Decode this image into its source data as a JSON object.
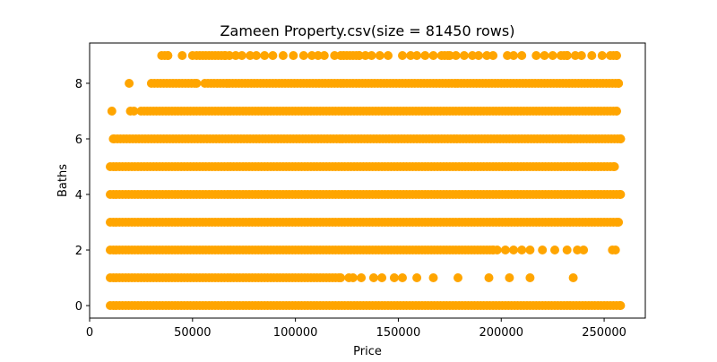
{
  "chart_data": {
    "type": "scatter",
    "title": "Zameen Property.csv(size = 81450 rows)",
    "xlabel": "Price",
    "ylabel": "Baths",
    "xlim": [
      0,
      270000
    ],
    "ylim": [
      -0.45,
      9.45
    ],
    "xticks": [
      0,
      50000,
      100000,
      150000,
      200000,
      250000
    ],
    "yticks": [
      0,
      2,
      4,
      6,
      8
    ],
    "grid": false,
    "color": "#ffa500",
    "series": [
      {
        "values": [
          {
            "baths": 0,
            "ranges": [
              [
                10000,
                258000
              ]
            ],
            "points": []
          },
          {
            "baths": 1,
            "ranges": [
              [
                10000,
                122000
              ]
            ],
            "points": [
              126000,
              128000,
              132000,
              138000,
              142000,
              148000,
              152000,
              159000,
              167000,
              179000,
              194000,
              204000,
              214000,
              235000
            ]
          },
          {
            "baths": 2,
            "ranges": [
              [
                10000,
                196000
              ]
            ],
            "points": [
              198000,
              202000,
              206000,
              210000,
              214000,
              220000,
              226000,
              232000,
              237000,
              240000,
              254000,
              255500
            ]
          },
          {
            "baths": 3,
            "ranges": [
              [
                10000,
                257000
              ]
            ],
            "points": []
          },
          {
            "baths": 4,
            "ranges": [
              [
                10000,
                258000
              ]
            ],
            "points": []
          },
          {
            "baths": 5,
            "ranges": [
              [
                10000,
                255000
              ]
            ],
            "points": []
          },
          {
            "baths": 6,
            "ranges": [
              [
                12000,
                258000
              ]
            ],
            "points": [
              11500
            ]
          },
          {
            "baths": 7,
            "ranges": [
              [
                25000,
                256000
              ]
            ],
            "points": [
              10800,
              19800,
              21500
            ]
          },
          {
            "baths": 8,
            "ranges": [
              [
                30000,
                52000
              ],
              [
                56000,
                257000
              ]
            ],
            "points": [
              19200
            ]
          },
          {
            "baths": 9,
            "ranges": [
              [
                35000,
                38000
              ],
              [
                52000,
                66000
              ],
              [
                122000,
                131000
              ],
              [
                171000,
                175000
              ],
              [
                229000,
                232000
              ],
              [
                253000,
                256000
              ]
            ],
            "points": [
              45000,
              50000,
              68000,
              71000,
              74000,
              78000,
              81000,
              85000,
              89000,
              94000,
              99000,
              104000,
              108000,
              111000,
              114000,
              119000,
              134000,
              137000,
              141000,
              145000,
              152000,
              156000,
              159000,
              163000,
              167000,
              178000,
              182000,
              186000,
              189000,
              193000,
              196000,
              203000,
              206000,
              210000,
              217000,
              221000,
              225000,
              236000,
              239000,
              244000,
              249000
            ]
          }
        ]
      }
    ]
  }
}
